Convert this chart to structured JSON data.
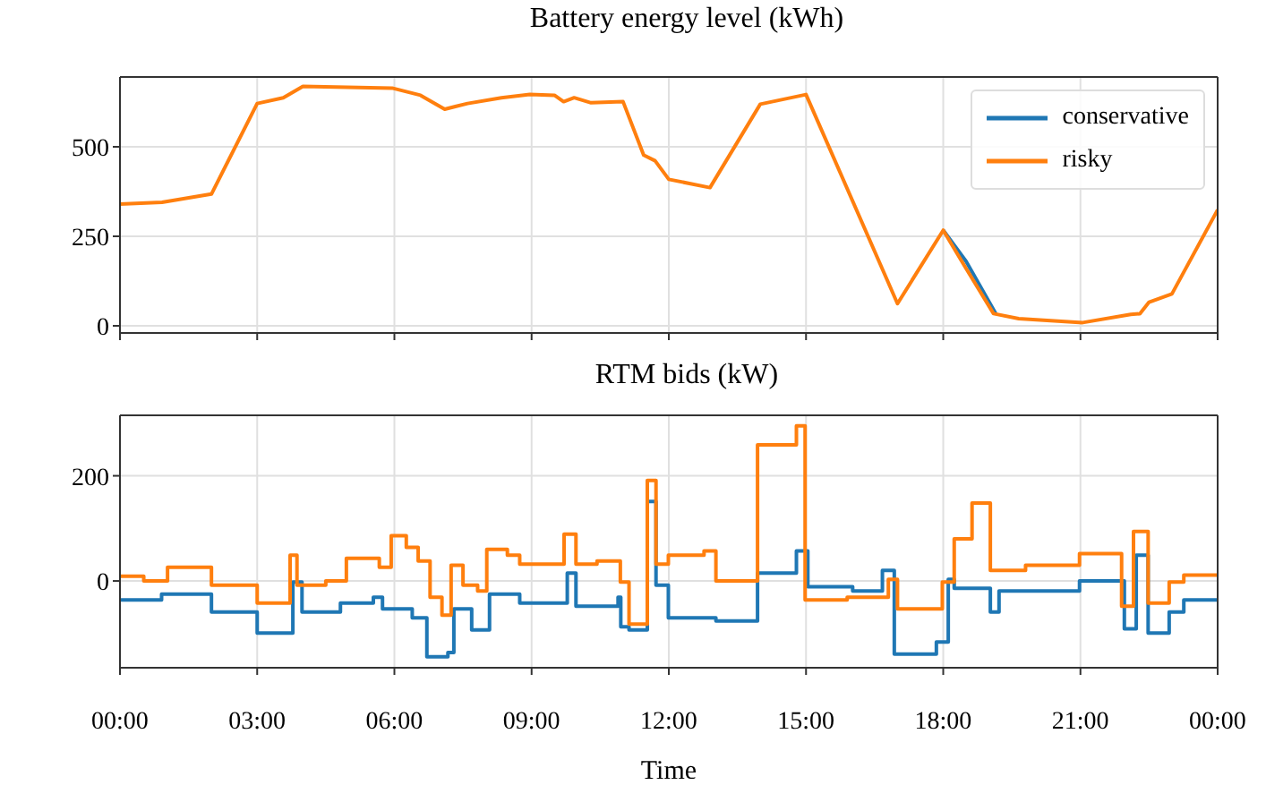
{
  "chart_data": [
    {
      "type": "line",
      "title": "Battery energy level (kWh)",
      "xlim": [
        0,
        24
      ],
      "xticks": [
        0,
        3,
        6,
        9,
        12,
        15,
        18,
        21,
        24
      ],
      "ylim": [
        -20,
        695
      ],
      "yticks": [
        0,
        250,
        500
      ],
      "tick_labels": "y",
      "grid": true,
      "legend": "top right",
      "series": [
        {
          "name": "conservative",
          "color": "#1f77b4",
          "x": [
            18.0,
            18.5,
            19.15
          ],
          "values": [
            267,
            180,
            34
          ]
        },
        {
          "name": "risky",
          "color": "#ff7f0e",
          "x": [
            0,
            0.92,
            2.0,
            3.0,
            3.57,
            4.0,
            5.95,
            6.57,
            7.1,
            7.6,
            8.34,
            8.96,
            9.5,
            9.7,
            9.93,
            10.3,
            11.0,
            11.45,
            11.7,
            12.0,
            12.9,
            14.0,
            15.0,
            17.0,
            18.0,
            18.5,
            19.1,
            19.65,
            21.05,
            22.1,
            22.3,
            22.5,
            23.0,
            24.0
          ],
          "values": [
            340,
            345,
            368,
            621,
            637,
            669,
            664,
            644,
            605,
            621,
            637,
            646,
            644,
            626,
            637,
            623,
            626,
            477,
            461,
            409,
            386,
            619,
            646,
            62,
            267,
            160,
            34,
            20,
            9,
            32,
            34,
            66,
            89,
            324
          ]
        }
      ]
    },
    {
      "type": "step",
      "title": "RTM bids (kW)",
      "xlabel": "Time",
      "xlim": [
        0,
        24
      ],
      "xticks": [
        {
          "value": 0,
          "label": "00:00"
        },
        {
          "value": 3,
          "label": "03:00"
        },
        {
          "value": 6,
          "label": "06:00"
        },
        {
          "value": 9,
          "label": "09:00"
        },
        {
          "value": 12,
          "label": "12:00"
        },
        {
          "value": 15,
          "label": "15:00"
        },
        {
          "value": 18,
          "label": "18:00"
        },
        {
          "value": 21,
          "label": "21:00"
        },
        {
          "value": 24,
          "label": "00:00"
        }
      ],
      "ylim": [
        -165,
        315
      ],
      "yticks": [
        0,
        200
      ],
      "grid": true,
      "series": [
        {
          "color": "#1f77b4",
          "x": [
            0,
            0.91,
            2.0,
            3.0,
            3.78,
            3.98,
            4.82,
            5.54,
            5.74,
            6.39,
            6.71,
            7.17,
            7.3,
            7.69,
            8.08,
            8.74,
            9.78,
            9.97,
            10.89,
            10.95,
            11.13,
            11.53,
            11.72,
            11.99,
            13.03,
            13.94,
            14.79,
            15.04,
            16.02,
            16.67,
            16.93,
            17.85,
            18.11,
            18.24,
            19.03,
            19.22,
            20.98,
            21.96,
            22.22,
            22.48,
            22.94,
            23.26,
            24.0
          ],
          "values": [
            -36,
            -25,
            -59,
            -99,
            -2,
            -59,
            -42,
            -31,
            -53,
            -70,
            -144,
            -136,
            -53,
            -93,
            -25,
            -42,
            15,
            -48,
            -31,
            -87,
            -93,
            151,
            -8,
            -70,
            -76,
            15,
            57,
            -11,
            -19,
            20,
            -139,
            -116,
            3,
            -14,
            -59,
            -19,
            0,
            -91,
            49,
            -99,
            -59,
            -36,
            -36
          ]
        },
        {
          "color": "#ff7f0e",
          "x": [
            0,
            0.52,
            1.04,
            2.0,
            3.0,
            3.72,
            3.87,
            4.5,
            4.95,
            5.67,
            5.93,
            6.26,
            6.52,
            6.78,
            7.04,
            7.24,
            7.5,
            7.82,
            8.02,
            8.47,
            8.74,
            9.71,
            9.97,
            10.43,
            10.94,
            11.13,
            11.53,
            11.72,
            11.99,
            12.77,
            13.03,
            13.94,
            14.79,
            14.98,
            15.9,
            16.8,
            17.0,
            17.98,
            18.24,
            18.63,
            19.03,
            19.8,
            20.98,
            21.9,
            22.16,
            22.48,
            22.94,
            23.26,
            24.0
          ],
          "values": [
            9,
            0,
            26,
            -8,
            -42,
            49,
            -8,
            0,
            43,
            26,
            86,
            64,
            38,
            -31,
            -65,
            30,
            -8,
            -19,
            60,
            49,
            32,
            89,
            32,
            38,
            -2,
            -82,
            191,
            32,
            49,
            57,
            0,
            259,
            295,
            -36,
            -31,
            3,
            -53,
            -2,
            80,
            148,
            20,
            30,
            52,
            -48,
            94,
            -42,
            -2,
            11,
            11
          ]
        }
      ]
    }
  ]
}
